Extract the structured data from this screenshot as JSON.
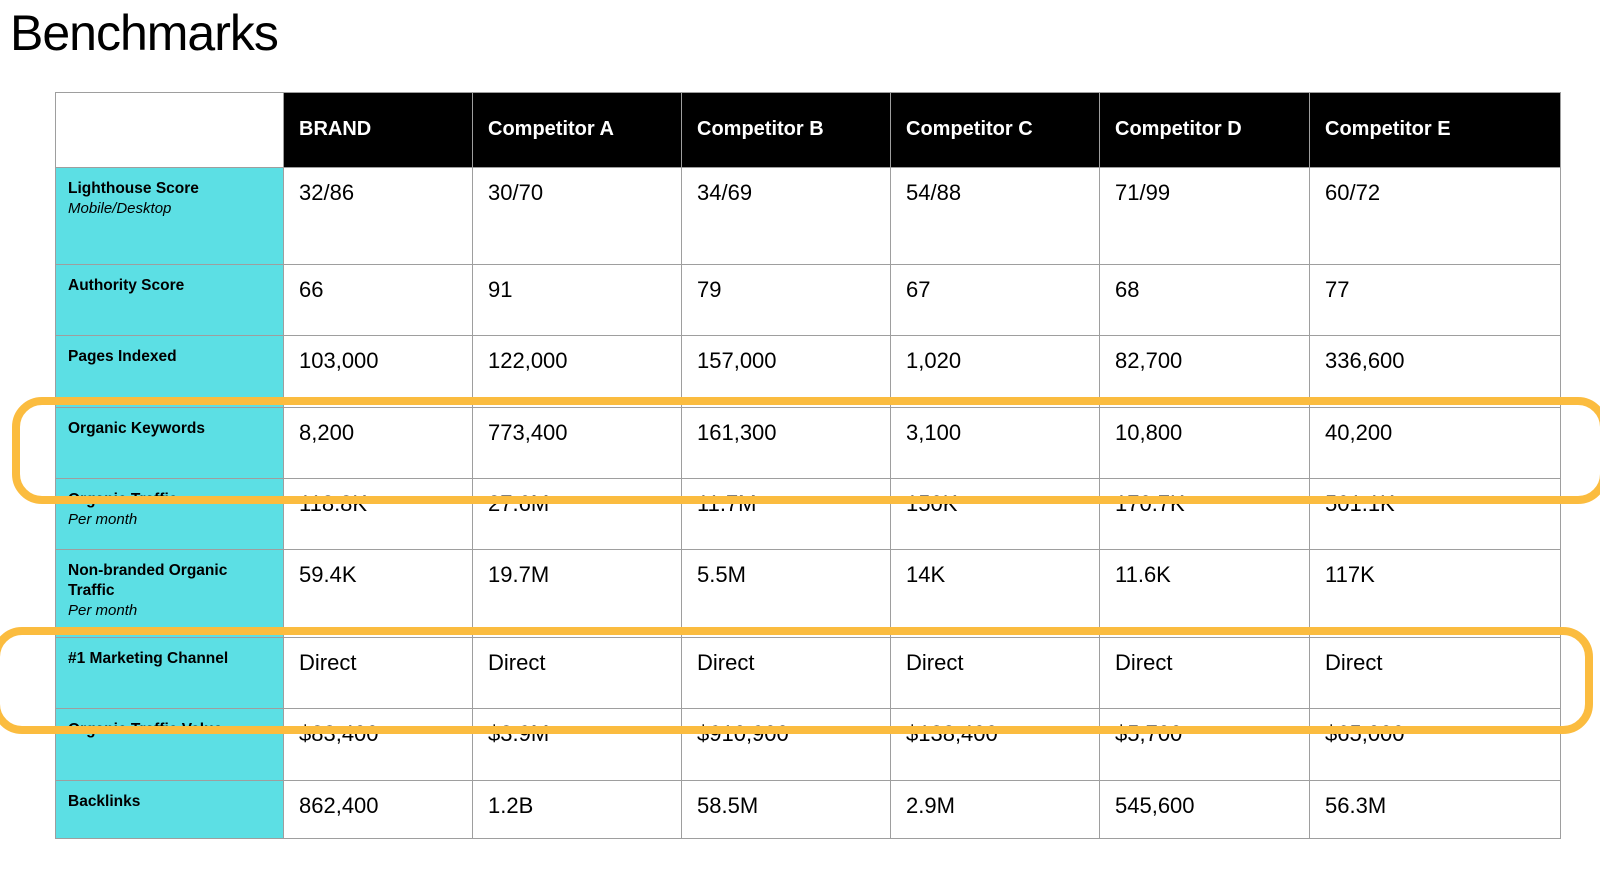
{
  "page": {
    "title": "Benchmarks"
  },
  "table": {
    "columns": [
      "",
      "BRAND",
      "Competitor A",
      "Competitor B",
      "Competitor C",
      "Competitor D",
      "Competitor E"
    ],
    "rows": [
      {
        "label": "Lighthouse Score",
        "sublabel": "Mobile/Desktop",
        "values": [
          "32/86",
          "30/70",
          "34/69",
          "54/88",
          "71/99",
          "60/72"
        ],
        "highlighted": false
      },
      {
        "label": "Authority Score",
        "sublabel": "",
        "values": [
          "66",
          "91",
          "79",
          "67",
          "68",
          "77"
        ],
        "highlighted": false
      },
      {
        "label": "Pages Indexed",
        "sublabel": "",
        "values": [
          "103,000",
          "122,000",
          "157,000",
          "1,020",
          "82,700",
          "336,600"
        ],
        "highlighted": false
      },
      {
        "label": "Organic Keywords",
        "sublabel": "",
        "values": [
          "8,200",
          "773,400",
          "161,300",
          "3,100",
          "10,800",
          "40,200"
        ],
        "highlighted": true
      },
      {
        "label": "Organic Traffic",
        "sublabel": "Per month",
        "values": [
          "118.8K",
          "27.6M",
          "11.7M",
          "150K",
          "170.7K",
          "501.1K"
        ],
        "highlighted": false
      },
      {
        "label": "Non-branded Organic Traffic",
        "sublabel": "Per month",
        "values": [
          "59.4K",
          "19.7M",
          "5.5M",
          "14K",
          "11.6K",
          "117K"
        ],
        "highlighted": false
      },
      {
        "label": "#1 Marketing Channel",
        "sublabel": "",
        "values": [
          "Direct",
          "Direct",
          "Direct",
          "Direct",
          "Direct",
          "Direct"
        ],
        "highlighted": true
      },
      {
        "label": "Organic Traffic Value",
        "sublabel": "",
        "values": [
          "$83,400",
          "$3.9M",
          "$910,900",
          "$138,400",
          "$5,700",
          "$65,000"
        ],
        "highlighted": false
      },
      {
        "label": "Backlinks",
        "sublabel": "",
        "values": [
          "862,400",
          "1.2B",
          "58.5M",
          "2.9M",
          "545,600",
          "56.3M"
        ],
        "highlighted": false
      }
    ],
    "colors": {
      "header_bg": "#000000",
      "header_text": "#ffffff",
      "label_bg": "#5CDFE4",
      "highlight": "#FBBC3F",
      "border": "#9E9E9E"
    }
  }
}
